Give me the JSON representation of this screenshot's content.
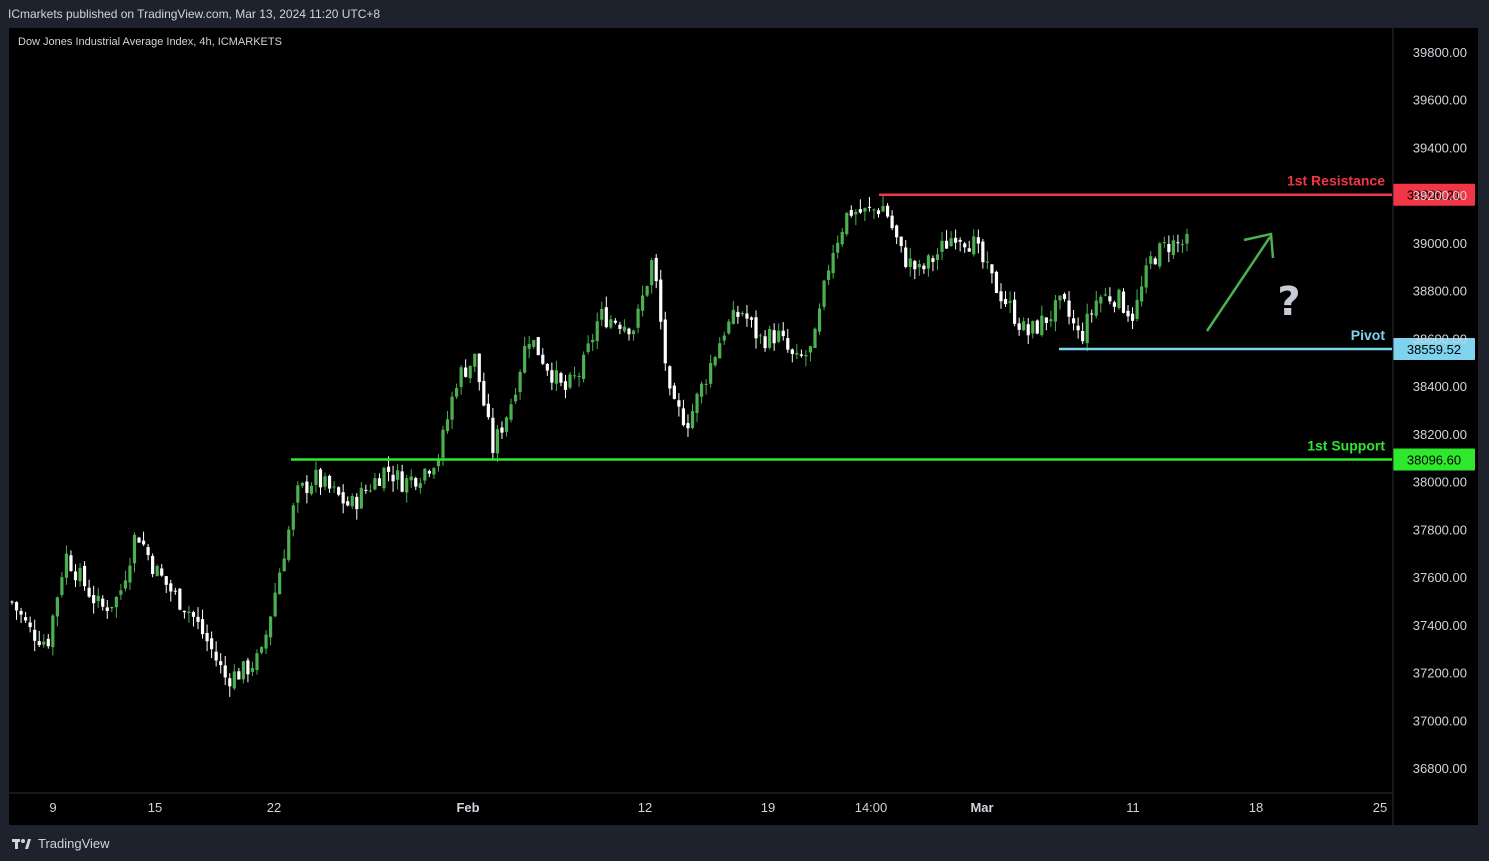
{
  "header": {
    "published_text": "ICmarkets published on TradingView.com, Mar 13, 2024 11:20 UTC+8"
  },
  "footer": {
    "logo_icon": "tradingview-logo-icon",
    "brand": "TradingView"
  },
  "chart_data": {
    "type": "candlestick",
    "title": "Dow Jones Industrial Average Index, 4h, ICMARKETS",
    "ylim": [
      36700,
      39950
    ],
    "yticks": [
      "39800.00",
      "39600.00",
      "39400.00",
      "39200.00",
      "39000.00",
      "38800.00",
      "38600.00",
      "38400.00",
      "38200.00",
      "38000.00",
      "37800.00",
      "37600.00",
      "37400.00",
      "37200.00",
      "37000.00",
      "36800.00"
    ],
    "xticks": [
      "9",
      "15",
      "22",
      "Feb",
      "12",
      "19",
      "14:00",
      "Mar",
      "11",
      "18",
      "25"
    ],
    "bold_xticks": [
      "Feb",
      "Mar"
    ],
    "grid": false,
    "up_color": "#4caf50",
    "down_color": "#ffffff",
    "levels": [
      {
        "label": "1st Resistance",
        "value": 39206.21,
        "value_text": "39206.21",
        "color": "#f23645"
      },
      {
        "label": "Pivot",
        "value": 38559.52,
        "value_text": "38559.52",
        "color": "#7ed3ef"
      },
      {
        "label": "1st Support",
        "value": 38096.6,
        "value_text": "38096.60",
        "color": "#2ee82e"
      }
    ],
    "annotations": {
      "arrow_color": "#4caf50",
      "question_mark": "?"
    },
    "close_path": [
      37500,
      37380,
      37330,
      37700,
      37580,
      37470,
      37520,
      37800,
      37640,
      37540,
      37460,
      37330,
      37180,
      37210,
      37270,
      37620,
      37950,
      38020,
      37960,
      37900,
      37980,
      38060,
      38000,
      38040,
      38120,
      38440,
      38520,
      38140,
      38330,
      38620,
      38500,
      38380,
      38470,
      38700,
      38680,
      38650,
      38940,
      38320,
      38260,
      38450,
      38640,
      38720,
      38600,
      38620,
      38500,
      38560,
      38960,
      39140,
      39130,
      39160,
      38950,
      38880,
      38960,
      39050,
      39000,
      38850,
      38740,
      38620,
      38680,
      38750,
      38600,
      38780,
      38780,
      38700,
      38940,
      39000,
      39000
    ]
  }
}
